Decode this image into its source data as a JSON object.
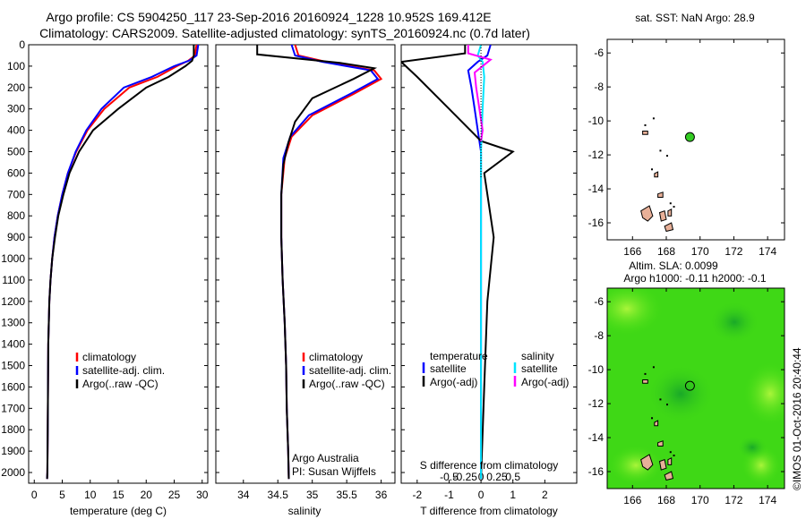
{
  "header": {
    "line1": "Argo profile: CS 5904250_117 23-Sep-2016 20160924_1228 10.952S 169.412E",
    "line2": "Climatology: CARS2009. Satellite-adjusted climatology: synTS_20160924.nc (0.7d later)"
  },
  "credit": "©IMOS 01-Oct-2016 20:40:44",
  "colors": {
    "climatology": "#ff0000",
    "satellite": "#0000ff",
    "argo": "#000000",
    "sat_salinity": "#00e5ff",
    "argo_adj_salinity": "#ff00ff",
    "land": "#e8b098",
    "sla_green": "#33dd11"
  },
  "chart_data": [
    {
      "type": "line",
      "xlabel": "temperature (deg C)",
      "ylabel": "",
      "xlim": [
        -1,
        31
      ],
      "ylim": [
        2050,
        0
      ],
      "xticks": [
        "0",
        "5",
        "10",
        "15",
        "20",
        "25",
        "30"
      ],
      "yticks": [
        "0",
        "100",
        "200",
        "300",
        "400",
        "500",
        "600",
        "700",
        "800",
        "900",
        "1000",
        "1100",
        "1200",
        "1300",
        "1400",
        "1500",
        "1600",
        "1700",
        "1800",
        "1900",
        "2000"
      ],
      "legend": [
        "climatology",
        "satellite-adj. clim.",
        "Argo(..raw -QC)"
      ],
      "series": [
        {
          "name": "climatology",
          "color": "#ff0000",
          "x": [
            29,
            28.7,
            27.5,
            25.5,
            22,
            17,
            12.5,
            9.5,
            7.5,
            6,
            5,
            4.2,
            3.6,
            3.2,
            2.9,
            2.7,
            2.6,
            2.5,
            2.45,
            2.4,
            2.35,
            2.3
          ],
          "y": [
            0,
            50,
            75,
            100,
            150,
            200,
            300,
            400,
            500,
            600,
            700,
            800,
            900,
            1000,
            1100,
            1200,
            1300,
            1400,
            1600,
            1800,
            2000,
            2030
          ]
        },
        {
          "name": "satellite-adj. clim.",
          "color": "#0000ff",
          "x": [
            29.3,
            29,
            27.6,
            25,
            21,
            16,
            12,
            9.3,
            7.4,
            6,
            5,
            4.2,
            3.6,
            3.2,
            2.9,
            2.7,
            2.6,
            2.5,
            2.45,
            2.4,
            2.35,
            2.3
          ],
          "y": [
            0,
            50,
            75,
            100,
            150,
            200,
            300,
            400,
            500,
            600,
            700,
            800,
            900,
            1000,
            1100,
            1200,
            1300,
            1400,
            1600,
            1800,
            2000,
            2030
          ]
        },
        {
          "name": "Argo(..raw -QC)",
          "color": "#000000",
          "x": [
            28.5,
            28.5,
            28.2,
            27,
            24,
            20,
            15,
            10.5,
            8,
            6.3,
            5.2,
            4.3,
            3.7,
            3.2,
            2.9,
            2.7,
            2.6,
            2.5,
            2.45,
            2.4,
            2.35,
            2.3
          ],
          "y": [
            0,
            50,
            75,
            100,
            150,
            200,
            300,
            400,
            500,
            600,
            700,
            800,
            900,
            1000,
            1100,
            1200,
            1300,
            1400,
            1600,
            1800,
            2000,
            2030
          ]
        }
      ]
    },
    {
      "type": "line",
      "xlabel": "salinity",
      "ylabel": "",
      "xlim": [
        33.6,
        36.2
      ],
      "ylim": [
        2050,
        0
      ],
      "xticks": [
        "34",
        "34.5",
        "35",
        "35.5",
        "36"
      ],
      "legend": [
        "climatology",
        "satellite-adj. clim.",
        "Argo(..raw -QC)"
      ],
      "annotations": [
        "Argo Australia",
        "PI: Susan Wijffels"
      ],
      "series": [
        {
          "name": "climatology",
          "color": "#ff0000",
          "x": [
            34.75,
            34.8,
            35.2,
            35.9,
            36.0,
            35.6,
            35.0,
            34.7,
            34.6,
            34.55,
            34.55,
            34.57,
            34.6,
            34.62,
            34.63,
            34.65,
            34.66
          ],
          "y": [
            0,
            50,
            80,
            120,
            160,
            230,
            330,
            430,
            530,
            700,
            900,
            1100,
            1300,
            1500,
            1700,
            1900,
            2030
          ]
        },
        {
          "name": "satellite-adj. clim.",
          "color": "#0000ff",
          "x": [
            34.7,
            34.75,
            35.15,
            35.85,
            35.95,
            35.55,
            34.95,
            34.68,
            34.58,
            34.55,
            34.55,
            34.57,
            34.6,
            34.62,
            34.63,
            34.65,
            34.66
          ],
          "y": [
            0,
            50,
            80,
            120,
            160,
            230,
            330,
            430,
            530,
            700,
            900,
            1100,
            1300,
            1500,
            1700,
            1900,
            2030
          ]
        },
        {
          "name": "Argo(..raw -QC)",
          "color": "#000000",
          "x": [
            34.2,
            34.2,
            35.4,
            35.9,
            35.6,
            35.0,
            34.75,
            34.65,
            34.58,
            34.55,
            34.55,
            34.57,
            34.6,
            34.62,
            34.63,
            34.65,
            34.66
          ],
          "y": [
            0,
            45,
            85,
            110,
            160,
            250,
            360,
            460,
            560,
            700,
            900,
            1100,
            1300,
            1500,
            1700,
            1900,
            2030
          ]
        }
      ]
    },
    {
      "type": "line",
      "xlabel": "T difference from climatology",
      "ylabel": "",
      "secondary_xlabel": "S difference from climatology",
      "xlim": [
        -2.5,
        3
      ],
      "ylim": [
        2050,
        0
      ],
      "xticks": [
        "-2",
        "-1",
        "0",
        "1",
        "2"
      ],
      "secondary_xticks": [
        "-0.5",
        "-0.25",
        "0",
        "0.25",
        "0.5"
      ],
      "legend": [
        "temperature",
        "satellite",
        "Argo(-adj)",
        "salinity",
        "satellite",
        "Argo(-adj)"
      ],
      "series": [
        {
          "name": "temperature satellite",
          "color": "#0000ff",
          "x": [
            0.3,
            0.2,
            -0.1,
            -0.4,
            -0.3,
            -0.2,
            -0.1,
            0,
            0,
            0,
            0
          ],
          "y": [
            0,
            50,
            80,
            120,
            200,
            300,
            400,
            500,
            800,
            1500,
            2030
          ]
        },
        {
          "name": "temperature Argo(-adj)",
          "color": "#000000",
          "x": [
            -0.5,
            -0.5,
            -2.5,
            -2.0,
            -1.0,
            0,
            1.0,
            0.1,
            0.4,
            0.2,
            0.1,
            0
          ],
          "y": [
            0,
            40,
            80,
            150,
            300,
            450,
            500,
            600,
            900,
            1200,
            1600,
            2030
          ]
        },
        {
          "name": "salinity satellite",
          "color": "#00e5ff",
          "x": [
            0,
            -0.1,
            0.05,
            0.1,
            0.05,
            0,
            0,
            0
          ],
          "y": [
            0,
            50,
            80,
            150,
            300,
            500,
            1000,
            2030
          ]
        },
        {
          "name": "salinity Argo(-adj)",
          "color": "#ff00ff",
          "x": [
            -0.4,
            -0.4,
            0.3,
            -0.2,
            -0.15,
            -0.05,
            0.05,
            0
          ],
          "y": [
            0,
            40,
            70,
            130,
            200,
            300,
            400,
            450
          ]
        }
      ]
    },
    {
      "type": "scatter",
      "title": "sat. SST: NaN Argo: 28.9",
      "xlim": [
        164.5,
        175
      ],
      "ylim": [
        -17,
        -5.2
      ],
      "xticks": [
        "166",
        "168",
        "170",
        "172",
        "174"
      ],
      "yticks": [
        "-6",
        "-8",
        "-10",
        "-12",
        "-14",
        "-16"
      ],
      "x": [
        169.4
      ],
      "y": [
        -10.95
      ]
    },
    {
      "type": "heatmap",
      "title": "Altim. SLA: 0.0099",
      "subtitle": "Argo h1000: -0.11 h2000: -0.1",
      "xlim": [
        164.5,
        175
      ],
      "ylim": [
        -17,
        -5.2
      ],
      "xticks": [
        "166",
        "168",
        "170",
        "172",
        "174"
      ],
      "yticks": [
        "-6",
        "-8",
        "-10",
        "-12",
        "-14",
        "-16"
      ],
      "x": [
        169.4
      ],
      "y": [
        -10.95
      ]
    }
  ]
}
